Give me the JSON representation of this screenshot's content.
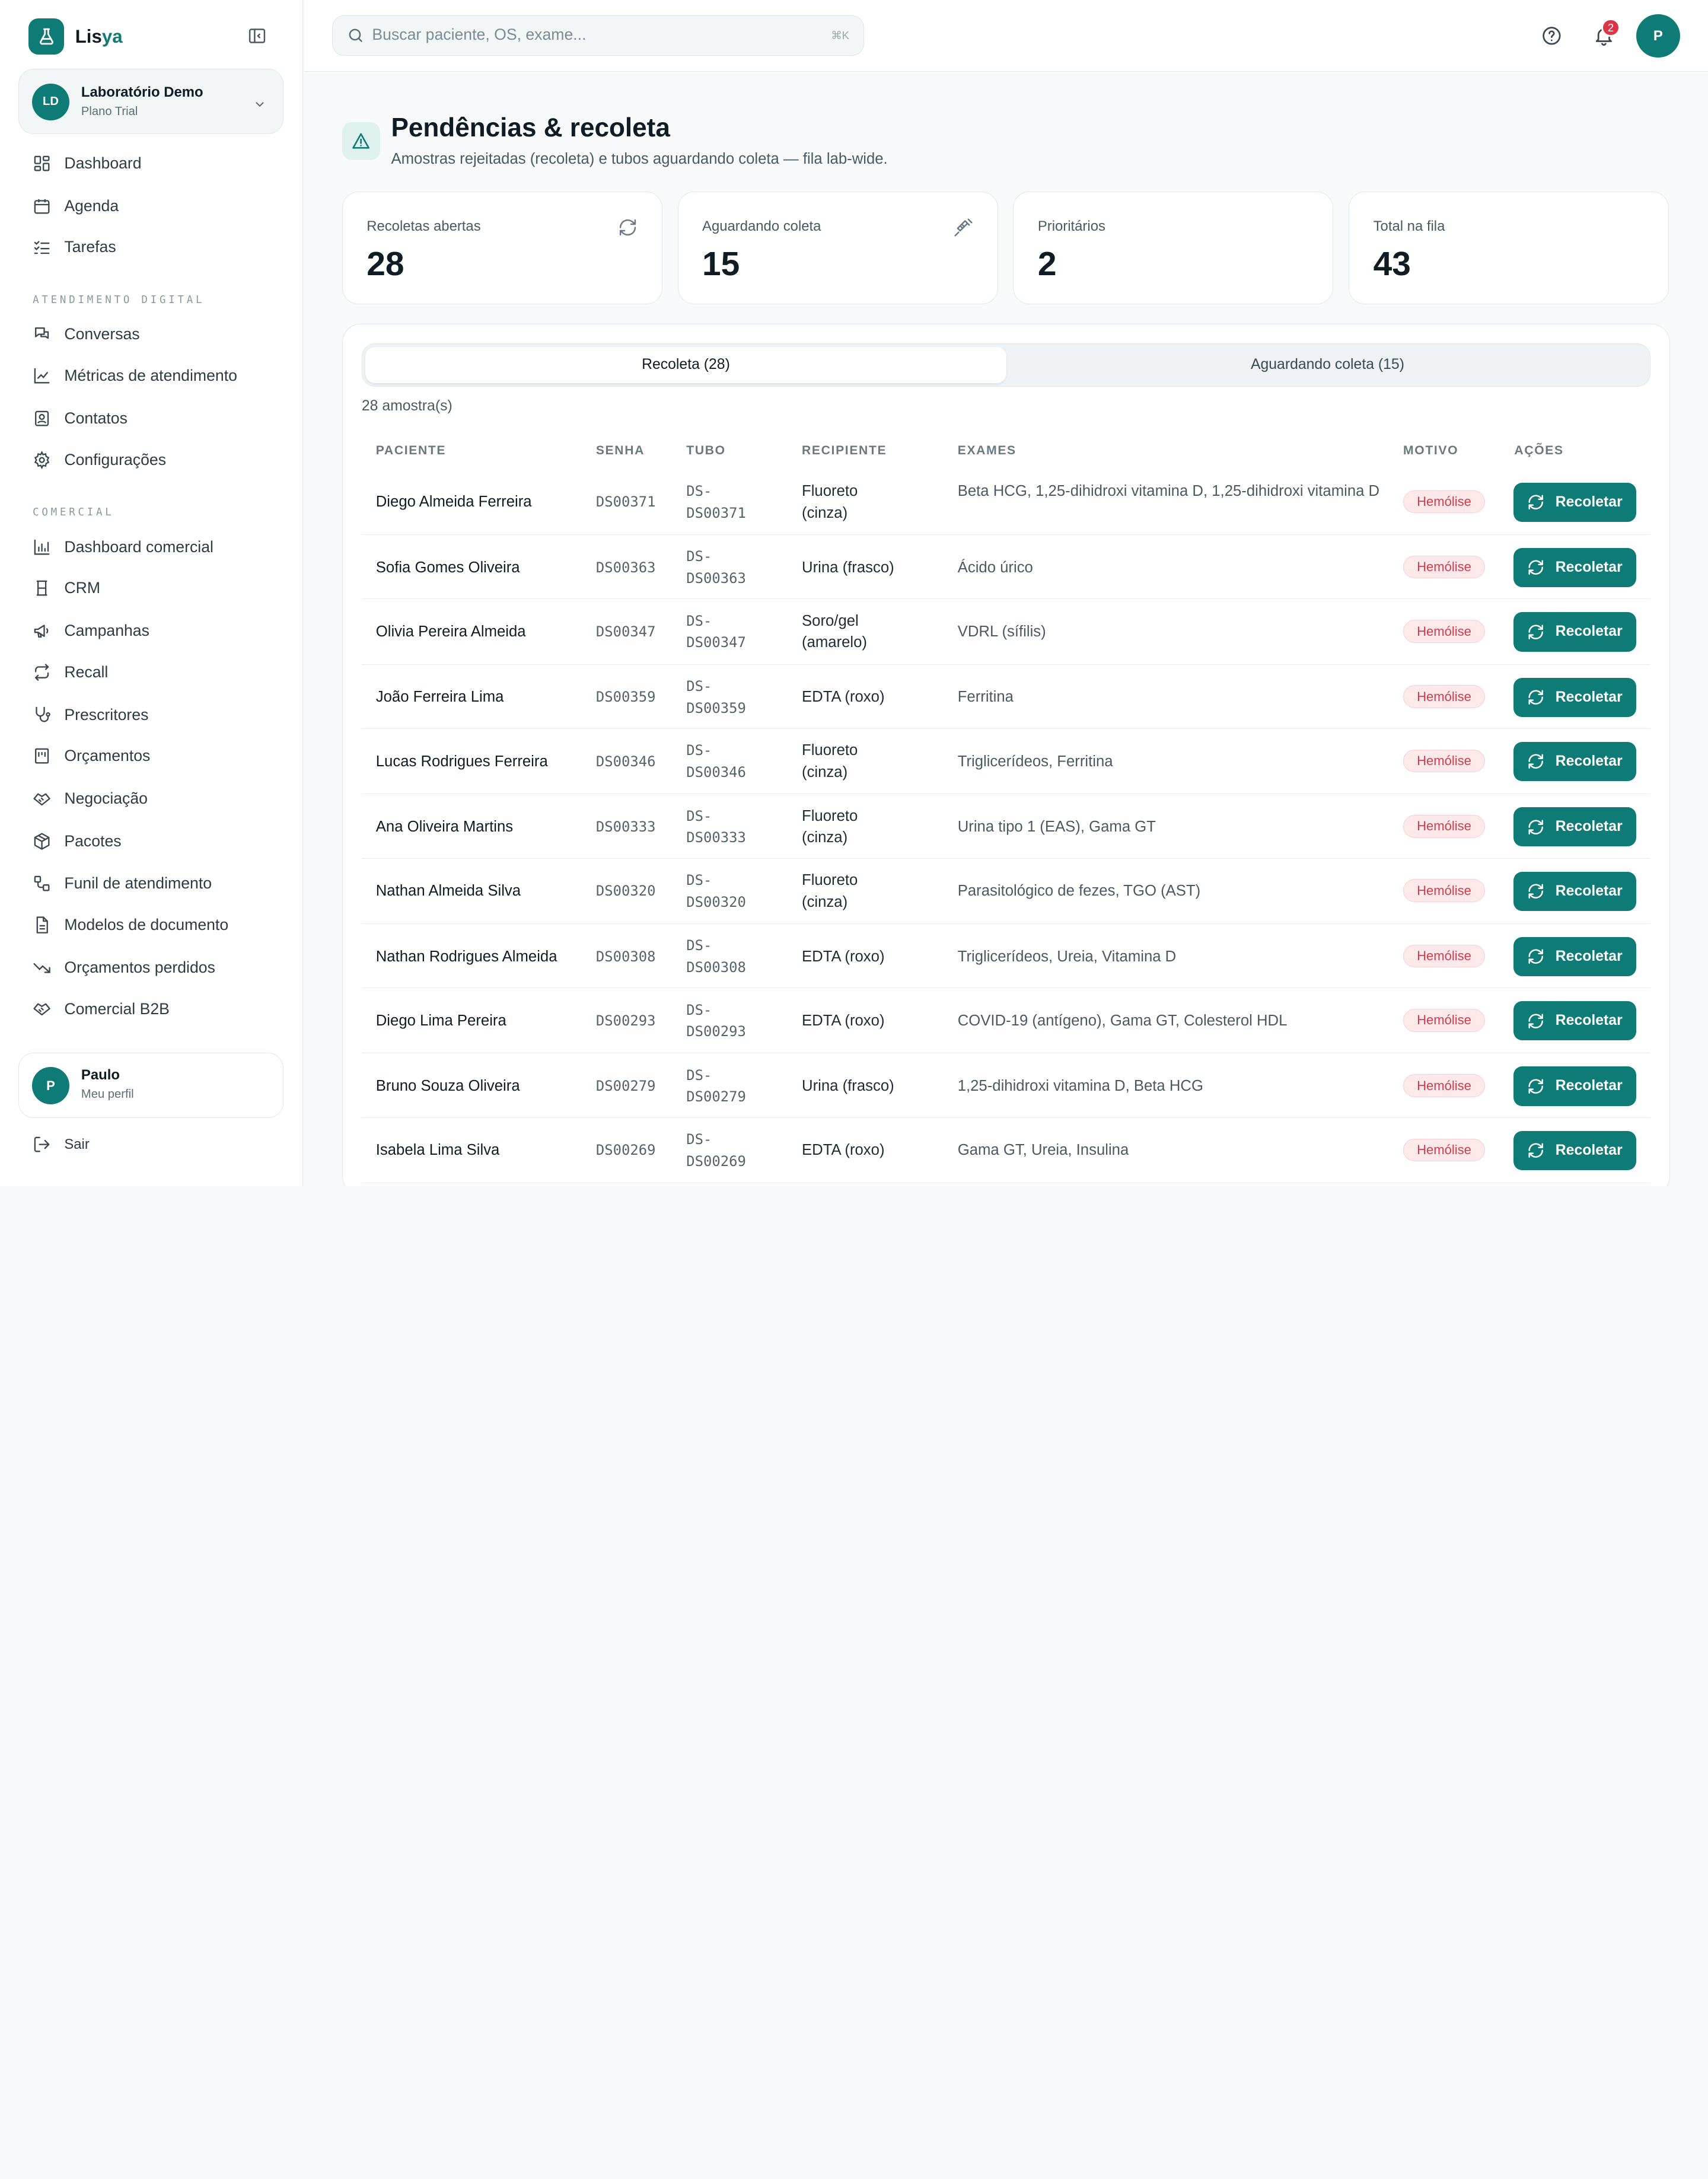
{
  "brand": {
    "name_prefix": "Lis",
    "name_suffix": "ya"
  },
  "org": {
    "initials": "LD",
    "name": "Laboratório Demo",
    "plan": "Plano Trial"
  },
  "nav": {
    "main": [
      {
        "label": "Dashboard",
        "icon": "dashboard-icon"
      },
      {
        "label": "Agenda",
        "icon": "calendar-icon"
      },
      {
        "label": "Tarefas",
        "icon": "tasks-icon"
      }
    ],
    "section_digital": "ATENDIMENTO DIGITAL",
    "digital": [
      {
        "label": "Conversas",
        "icon": "chat-icon"
      },
      {
        "label": "Métricas de atendimento",
        "icon": "line-chart-icon"
      },
      {
        "label": "Contatos",
        "icon": "contact-icon"
      },
      {
        "label": "Configurações",
        "icon": "gear-icon"
      }
    ],
    "section_comercial": "COMERCIAL",
    "comercial": [
      {
        "label": "Dashboard comercial",
        "icon": "bar-chart-icon"
      },
      {
        "label": "CRM",
        "icon": "crm-icon"
      },
      {
        "label": "Campanhas",
        "icon": "megaphone-icon"
      },
      {
        "label": "Recall",
        "icon": "repeat-icon"
      },
      {
        "label": "Prescritores",
        "icon": "stethoscope-icon"
      },
      {
        "label": "Orçamentos",
        "icon": "receipt-icon"
      },
      {
        "label": "Negociação",
        "icon": "handshake-icon"
      },
      {
        "label": "Pacotes",
        "icon": "package-icon"
      },
      {
        "label": "Funil de atendimento",
        "icon": "workflow-icon"
      },
      {
        "label": "Modelos de documento",
        "icon": "document-icon"
      },
      {
        "label": "Orçamentos perdidos",
        "icon": "trending-down-icon"
      },
      {
        "label": "Comercial B2B",
        "icon": "handshake-icon"
      }
    ]
  },
  "user": {
    "initial": "P",
    "name": "Paulo",
    "profile": "Meu perfil",
    "logout": "Sair"
  },
  "topbar": {
    "search_placeholder": "Buscar paciente, OS, exame...",
    "search_shortcut": "⌘K",
    "notif_count": "2",
    "avatar_initial": "P"
  },
  "page": {
    "title": "Pendências & recoleta",
    "subtitle": "Amostras rejeitadas (recoleta) e tubos aguardando coleta — fila lab-wide."
  },
  "stats": [
    {
      "label": "Recoletas abertas",
      "value": "28",
      "icon": "refresh-icon"
    },
    {
      "label": "Aguardando coleta",
      "value": "15",
      "icon": "syringe-icon"
    },
    {
      "label": "Prioritários",
      "value": "2",
      "icon": ""
    },
    {
      "label": "Total na fila",
      "value": "43",
      "icon": ""
    }
  ],
  "tabs": [
    {
      "label": "Recoleta (28)",
      "active": true
    },
    {
      "label": "Aguardando coleta (15)",
      "active": false
    }
  ],
  "count_text": "28 amostra(s)",
  "table": {
    "headers": [
      "PACIENTE",
      "SENHA",
      "TUBO",
      "RECIPIENTE",
      "EXAMES",
      "MOTIVO",
      "AÇÕES"
    ],
    "rows": [
      {
        "paciente": "Diego Almeida Ferreira",
        "senha": "DS00371",
        "tubo1": "DS-",
        "tubo2": "DS00371",
        "recipiente": "Fluoreto (cinza)",
        "exames": "Beta HCG, 1,25-dihidroxi vitamina D, 1,25-dihidroxi vitamina D",
        "motivo": "Hemólise",
        "acao": "Recoletar"
      },
      {
        "paciente": "Sofia Gomes Oliveira",
        "senha": "DS00363",
        "tubo1": "DS-",
        "tubo2": "DS00363",
        "recipiente": "Urina (frasco)",
        "exames": "Ácido úrico",
        "motivo": "Hemólise",
        "acao": "Recoletar"
      },
      {
        "paciente": "Olivia Pereira Almeida",
        "senha": "DS00347",
        "tubo1": "DS-",
        "tubo2": "DS00347",
        "recipiente": "Soro/gel (amarelo)",
        "exames": "VDRL (sífilis)",
        "motivo": "Hemólise",
        "acao": "Recoletar"
      },
      {
        "paciente": "João Ferreira Lima",
        "senha": "DS00359",
        "tubo1": "DS-",
        "tubo2": "DS00359",
        "recipiente": "EDTA (roxo)",
        "exames": "Ferritina",
        "motivo": "Hemólise",
        "acao": "Recoletar"
      },
      {
        "paciente": "Lucas Rodrigues Ferreira",
        "senha": "DS00346",
        "tubo1": "DS-",
        "tubo2": "DS00346",
        "recipiente": "Fluoreto (cinza)",
        "exames": "Triglicerídeos, Ferritina",
        "motivo": "Hemólise",
        "acao": "Recoletar"
      },
      {
        "paciente": "Ana Oliveira Martins",
        "senha": "DS00333",
        "tubo1": "DS-",
        "tubo2": "DS00333",
        "recipiente": "Fluoreto (cinza)",
        "exames": "Urina tipo 1 (EAS), Gama GT",
        "motivo": "Hemólise",
        "acao": "Recoletar"
      },
      {
        "paciente": "Nathan Almeida Silva",
        "senha": "DS00320",
        "tubo1": "DS-",
        "tubo2": "DS00320",
        "recipiente": "Fluoreto (cinza)",
        "exames": "Parasitológico de fezes, TGO (AST)",
        "motivo": "Hemólise",
        "acao": "Recoletar"
      },
      {
        "paciente": "Nathan Rodrigues Almeida",
        "senha": "DS00308",
        "tubo1": "DS-",
        "tubo2": "DS00308",
        "recipiente": "EDTA (roxo)",
        "exames": "Triglicerídeos, Ureia, Vitamina D",
        "motivo": "Hemólise",
        "acao": "Recoletar"
      },
      {
        "paciente": "Diego Lima Pereira",
        "senha": "DS00293",
        "tubo1": "DS-",
        "tubo2": "DS00293",
        "recipiente": "EDTA (roxo)",
        "exames": "COVID-19 (antígeno), Gama GT, Colesterol HDL",
        "motivo": "Hemólise",
        "acao": "Recoletar"
      },
      {
        "paciente": "Bruno Souza Oliveira",
        "senha": "DS00279",
        "tubo1": "DS-",
        "tubo2": "DS00279",
        "recipiente": "Urina (frasco)",
        "exames": "1,25-dihidroxi vitamina D, Beta HCG",
        "motivo": "Hemólise",
        "acao": "Recoletar"
      },
      {
        "paciente": "Isabela Lima Silva",
        "senha": "DS00269",
        "tubo1": "DS-",
        "tubo2": "DS00269",
        "recipiente": "EDTA (roxo)",
        "exames": "Gama GT, Ureia, Insulina",
        "motivo": "Hemólise",
        "acao": "Recoletar"
      }
    ]
  },
  "colors": {
    "accent": "#0e7b76",
    "badge_bg": "#fde8ea",
    "badge_fg": "#d13d4d",
    "notif": "#dc3545"
  }
}
